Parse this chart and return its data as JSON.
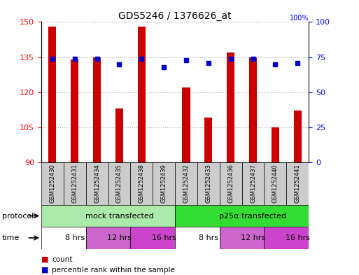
{
  "title": "GDS5246 / 1376626_at",
  "samples": [
    "GSM1252430",
    "GSM1252431",
    "GSM1252434",
    "GSM1252435",
    "GSM1252438",
    "GSM1252439",
    "GSM1252432",
    "GSM1252433",
    "GSM1252436",
    "GSM1252437",
    "GSM1252440",
    "GSM1252441"
  ],
  "counts": [
    148,
    134,
    135,
    113,
    148,
    90,
    122,
    109,
    137,
    135,
    105,
    112
  ],
  "percentiles": [
    74,
    74,
    74,
    70,
    74,
    68,
    73,
    71,
    74,
    74,
    70,
    71
  ],
  "ylim_left": [
    90,
    150
  ],
  "ylim_right": [
    0,
    100
  ],
  "yticks_left": [
    90,
    105,
    120,
    135,
    150
  ],
  "yticks_right": [
    0,
    25,
    50,
    75,
    100
  ],
  "bar_color": "#cc0000",
  "dot_color": "#0000cc",
  "bar_width": 0.35,
  "protocol_groups": [
    {
      "label": "mock transfected",
      "start": 0,
      "end": 6,
      "color": "#aaeaaa"
    },
    {
      "label": "p25α transfected",
      "start": 6,
      "end": 12,
      "color": "#33dd33"
    }
  ],
  "time_colors": [
    "#ffffff",
    "#cc66cc",
    "#cc44cc",
    "#ffffff",
    "#cc66cc",
    "#cc44cc"
  ],
  "time_labels": [
    "8 hrs",
    "12 hrs",
    "16 hrs",
    "8 hrs",
    "12 hrs",
    "16 hrs"
  ],
  "time_spans_start": [
    0,
    2,
    4,
    6,
    8,
    10
  ],
  "time_spans_end": [
    2,
    4,
    6,
    8,
    10,
    12
  ],
  "protocol_label": "protocol",
  "time_label": "time",
  "legend_count": "count",
  "legend_percentile": "percentile rank within the sample",
  "grid_color": "#aaaaaa",
  "bg_color": "#ffffff",
  "sample_bg_color": "#cccccc",
  "title_fontsize": 10,
  "tick_fontsize": 8,
  "sample_fontsize": 6,
  "row_fontsize": 8
}
